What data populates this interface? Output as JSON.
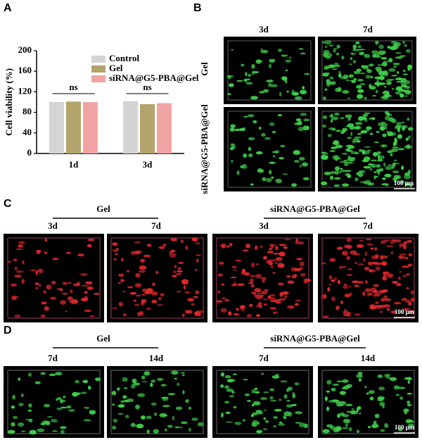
{
  "panel_labels": [
    "A",
    "B",
    "C",
    "D"
  ],
  "chart_data": {
    "type": "bar",
    "ylabel": "Cell viability (%)",
    "categories": [
      "1d",
      "3d"
    ],
    "series": [
      {
        "name": "Control",
        "color": "#d4d4d4",
        "values": [
          100,
          102
        ]
      },
      {
        "name": "Gel",
        "color": "#b3a46c",
        "values": [
          101,
          96
        ]
      },
      {
        "name": "siRNA@G5-PBA@Gel",
        "color": "#f2a3a3",
        "values": [
          100,
          98
        ]
      }
    ],
    "ylim": [
      0,
      200
    ],
    "yticks": [
      0,
      40,
      80,
      120,
      160,
      200
    ],
    "annotations": [
      "ns",
      "ns"
    ],
    "legend": "top-right"
  },
  "panel_b": {
    "columns": [
      "3d",
      "7d"
    ],
    "rows": [
      "Gel",
      "siRNA@G5-PBA@Gel"
    ],
    "scale_bar": "100 μm"
  },
  "panel_c": {
    "groups": [
      "Gel",
      "siRNA@G5-PBA@Gel"
    ],
    "columns": [
      "3d",
      "7d",
      "3d",
      "7d"
    ],
    "scale_bar": "100 μm"
  },
  "panel_d": {
    "groups": [
      "Gel",
      "siRNA@G5-PBA@Gel"
    ],
    "columns": [
      "7d",
      "14d",
      "7d",
      "14d"
    ],
    "scale_bar": "100 μm"
  }
}
